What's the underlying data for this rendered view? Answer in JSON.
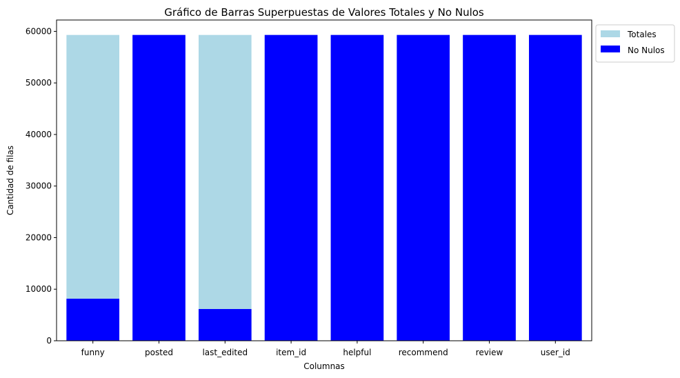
{
  "chart_data": {
    "type": "bar",
    "title": "Gráfico de Barras Superpuestas de Valores Totales y No Nulos",
    "xlabel": "Columnas",
    "ylabel": "Cantidad de filas",
    "categories": [
      "funny",
      "posted",
      "last_edited",
      "item_id",
      "helpful",
      "recommend",
      "review",
      "user_id"
    ],
    "ylim": [
      0,
      62200
    ],
    "yticks": [
      0,
      10000,
      20000,
      30000,
      40000,
      50000,
      60000
    ],
    "grid": false,
    "legend_position": "upper-right-outside",
    "series": [
      {
        "name": "Totales",
        "color": "#add8e6",
        "values": [
          59300,
          59300,
          59300,
          59300,
          59300,
          59300,
          59300,
          59300
        ]
      },
      {
        "name": "No Nulos",
        "color": "#0000ff",
        "values": [
          8150,
          59300,
          6150,
          59300,
          59300,
          59300,
          59300,
          59300
        ]
      }
    ]
  }
}
